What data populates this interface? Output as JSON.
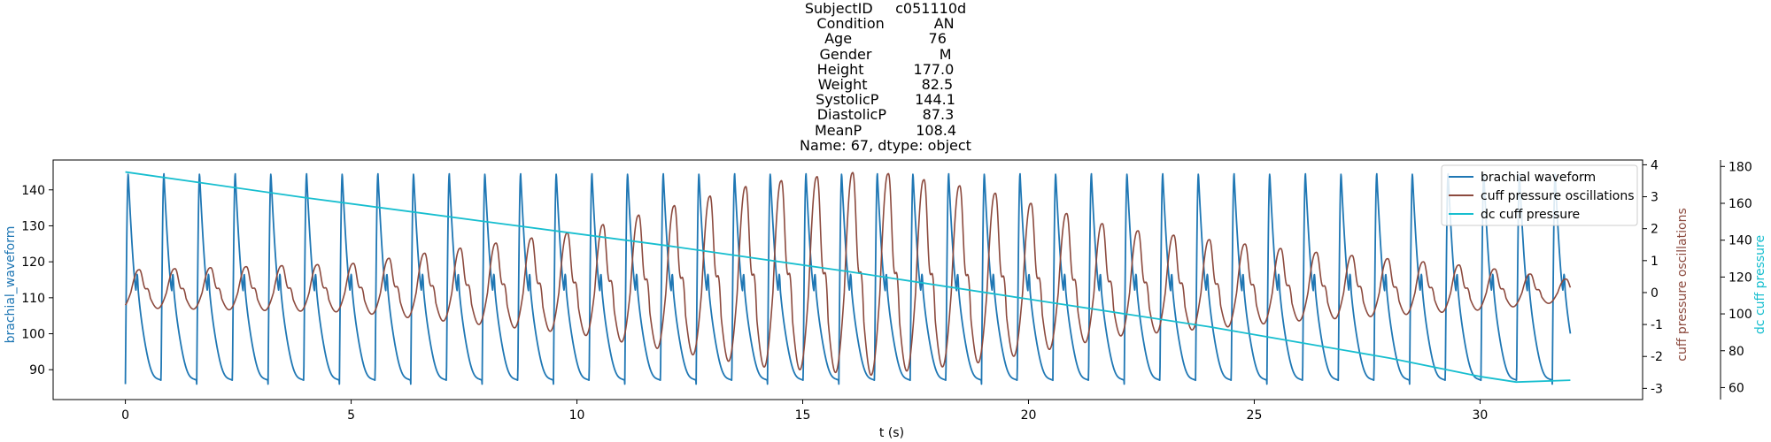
{
  "title_lines": [
    "SubjectID     c051110d",
    "Condition           AN",
    "Age                 76",
    "Gender               M",
    "Height           177.0",
    "Weight            82.5",
    "SystolicP        144.1",
    "DiastolicP        87.3",
    "MeanP            108.4",
    "Name: 67, dtype: object"
  ],
  "colors": {
    "brachial": "#1f77b4",
    "cuff_osc": "#8c4a3e",
    "dc_cuff": "#17becf"
  },
  "chart_data": {
    "type": "line",
    "xlabel": "t (s)",
    "xlim": [
      -1.6,
      33.6
    ],
    "xticks": [
      0,
      5,
      10,
      15,
      20,
      25,
      30
    ],
    "grid": false,
    "legend_position": "top-right",
    "legend": [
      "brachial waveform",
      "cuff pressure oscillations",
      "dc cuff pressure"
    ],
    "axes": [
      {
        "id": "left",
        "label": "brachial_waveform",
        "ylim": [
          81.7,
          148.3
        ],
        "ticks": [
          90,
          100,
          110,
          120,
          130,
          140
        ]
      },
      {
        "id": "right1",
        "label": "cuff pressure oscillations",
        "ylim": [
          -3.35,
          4.15
        ],
        "ticks": [
          -3,
          -2,
          -1,
          0,
          1,
          2,
          3,
          4
        ]
      },
      {
        "id": "right2",
        "label": "dc cuff pressure",
        "ylim": [
          53.5,
          183.5
        ],
        "ticks": [
          60,
          80,
          100,
          120,
          140,
          160,
          180
        ]
      }
    ],
    "series": [
      {
        "name": "brachial waveform",
        "axis": "left",
        "color": "#1f77b4",
        "beat_period_s": 0.79,
        "t_start": 0,
        "t_end": 32,
        "systolic": 144.5,
        "diastolic": 86.0,
        "notch_value": 112.0
      },
      {
        "name": "cuff pressure oscillations",
        "axis": "right1",
        "color": "#8c4a3e",
        "beat_period_s": 0.79,
        "t_start": 0,
        "t_end": 32,
        "amplitude_envelope": {
          "t": [
            0,
            5,
            10,
            14,
            16.5,
            19,
            22,
            26,
            30,
            32
          ],
          "peak": [
            0.7,
            0.9,
            1.9,
            3.4,
            3.8,
            3.2,
            2.0,
            1.3,
            0.8,
            0.4
          ]
        }
      },
      {
        "name": "dc cuff pressure",
        "axis": "right2",
        "color": "#17becf",
        "x": [
          0,
          4,
          8,
          12,
          16,
          20,
          24,
          28,
          30,
          30.8,
          32
        ],
        "y": [
          177,
          163,
          150,
          137,
          123,
          108,
          93,
          76,
          66,
          63,
          64
        ]
      }
    ]
  }
}
